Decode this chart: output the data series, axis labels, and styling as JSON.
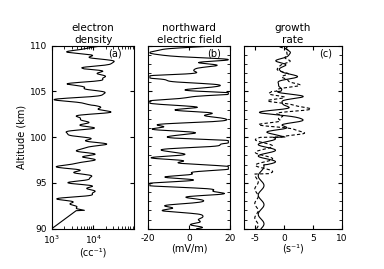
{
  "title_a": "electron\ndensity",
  "title_b": "northward\nelectric field",
  "title_c": "growth\nrate",
  "label_a": "(a)",
  "label_b": "(b)",
  "label_c": "(c)",
  "xlabel_a": "(cc⁻¹)",
  "xlabel_b": "(mV/m)",
  "xlabel_c": "(s⁻¹)",
  "ylabel": "Altitude (km)",
  "alt_min": 90,
  "alt_max": 110,
  "background_color": "#ffffff",
  "line_color": "#000000"
}
